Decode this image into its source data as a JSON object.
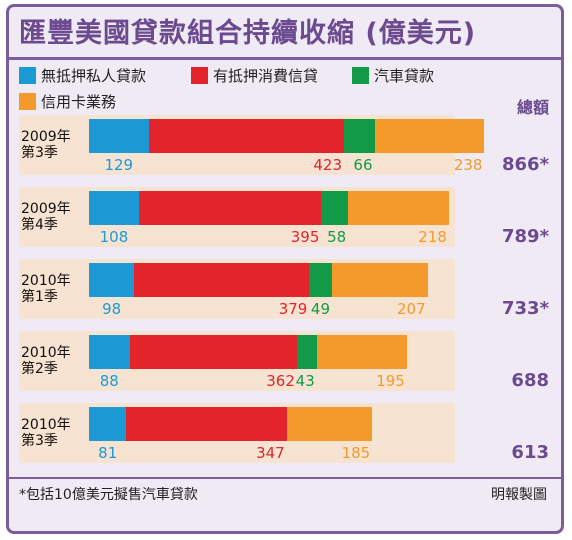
{
  "chart_data": {
    "type": "bar",
    "stacked": true,
    "orientation": "horizontal",
    "title": "匯豐美國貸款組合持續收縮 (億美元)",
    "total_header": "總額",
    "categories": [
      {
        "year": "2009年",
        "quarter": "第3季",
        "total_label": "866*"
      },
      {
        "year": "2009年",
        "quarter": "第4季",
        "total_label": "789*"
      },
      {
        "year": "2010年",
        "quarter": "第1季",
        "total_label": "733*"
      },
      {
        "year": "2010年",
        "quarter": "第2季",
        "total_label": "688"
      },
      {
        "year": "2010年",
        "quarter": "第3季",
        "total_label": "613"
      }
    ],
    "series": [
      {
        "name": "無抵押私人貸款",
        "color": "#1c9ad6",
        "values": [
          129,
          108,
          98,
          88,
          81
        ]
      },
      {
        "name": "有抵押消費信貸",
        "color": "#e3242b",
        "values": [
          423,
          395,
          379,
          362,
          347
        ]
      },
      {
        "name": "汽車貸款",
        "color": "#139a48",
        "values": [
          66,
          58,
          49,
          43,
          null
        ]
      },
      {
        "name": "信用卡業務",
        "color": "#f39a2b",
        "values": [
          238,
          218,
          207,
          195,
          185
        ]
      }
    ],
    "footnote": "*包括10億美元擬售汽車貸款",
    "credit": "明報製圖"
  }
}
